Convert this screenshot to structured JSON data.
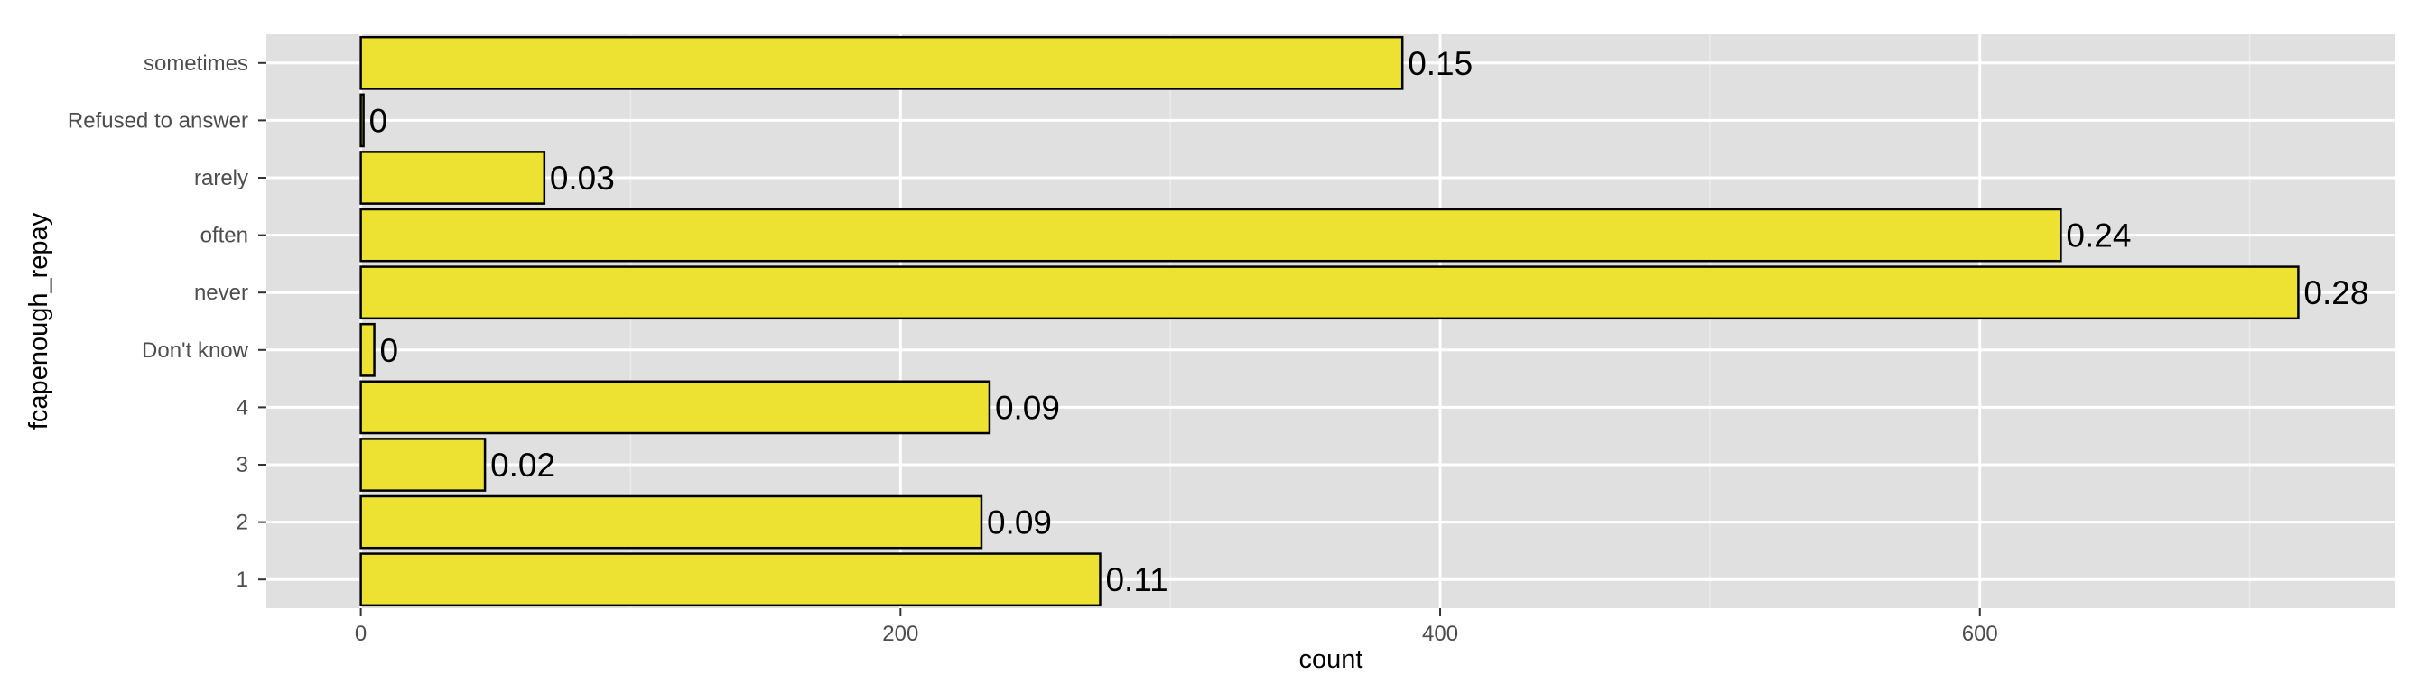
{
  "chart_data": {
    "type": "bar",
    "orientation": "horizontal",
    "title": "",
    "xlabel": "count",
    "ylabel": "fcapenough_repay",
    "categories": [
      "1",
      "2",
      "3",
      "4",
      "Don't know",
      "never",
      "often",
      "rarely",
      "Refused to answer",
      "sometimes"
    ],
    "values": [
      274,
      230,
      46,
      233,
      5,
      718,
      630,
      68,
      1,
      386
    ],
    "bar_labels": [
      "0.11",
      "0.09",
      "0.02",
      "0.09",
      "0",
      "0.28",
      "0.24",
      "0.03",
      "0",
      "0.15"
    ],
    "xlim": [
      -35,
      754
    ],
    "xticks": [
      0,
      200,
      400,
      600
    ],
    "grid": true,
    "legend": "none",
    "colors": {
      "bar_fill": "#ede132",
      "bar_stroke": "#000000",
      "panel": "#e0e0e0",
      "grid_major": "#ffffff",
      "grid_minor": "#ececec"
    }
  }
}
